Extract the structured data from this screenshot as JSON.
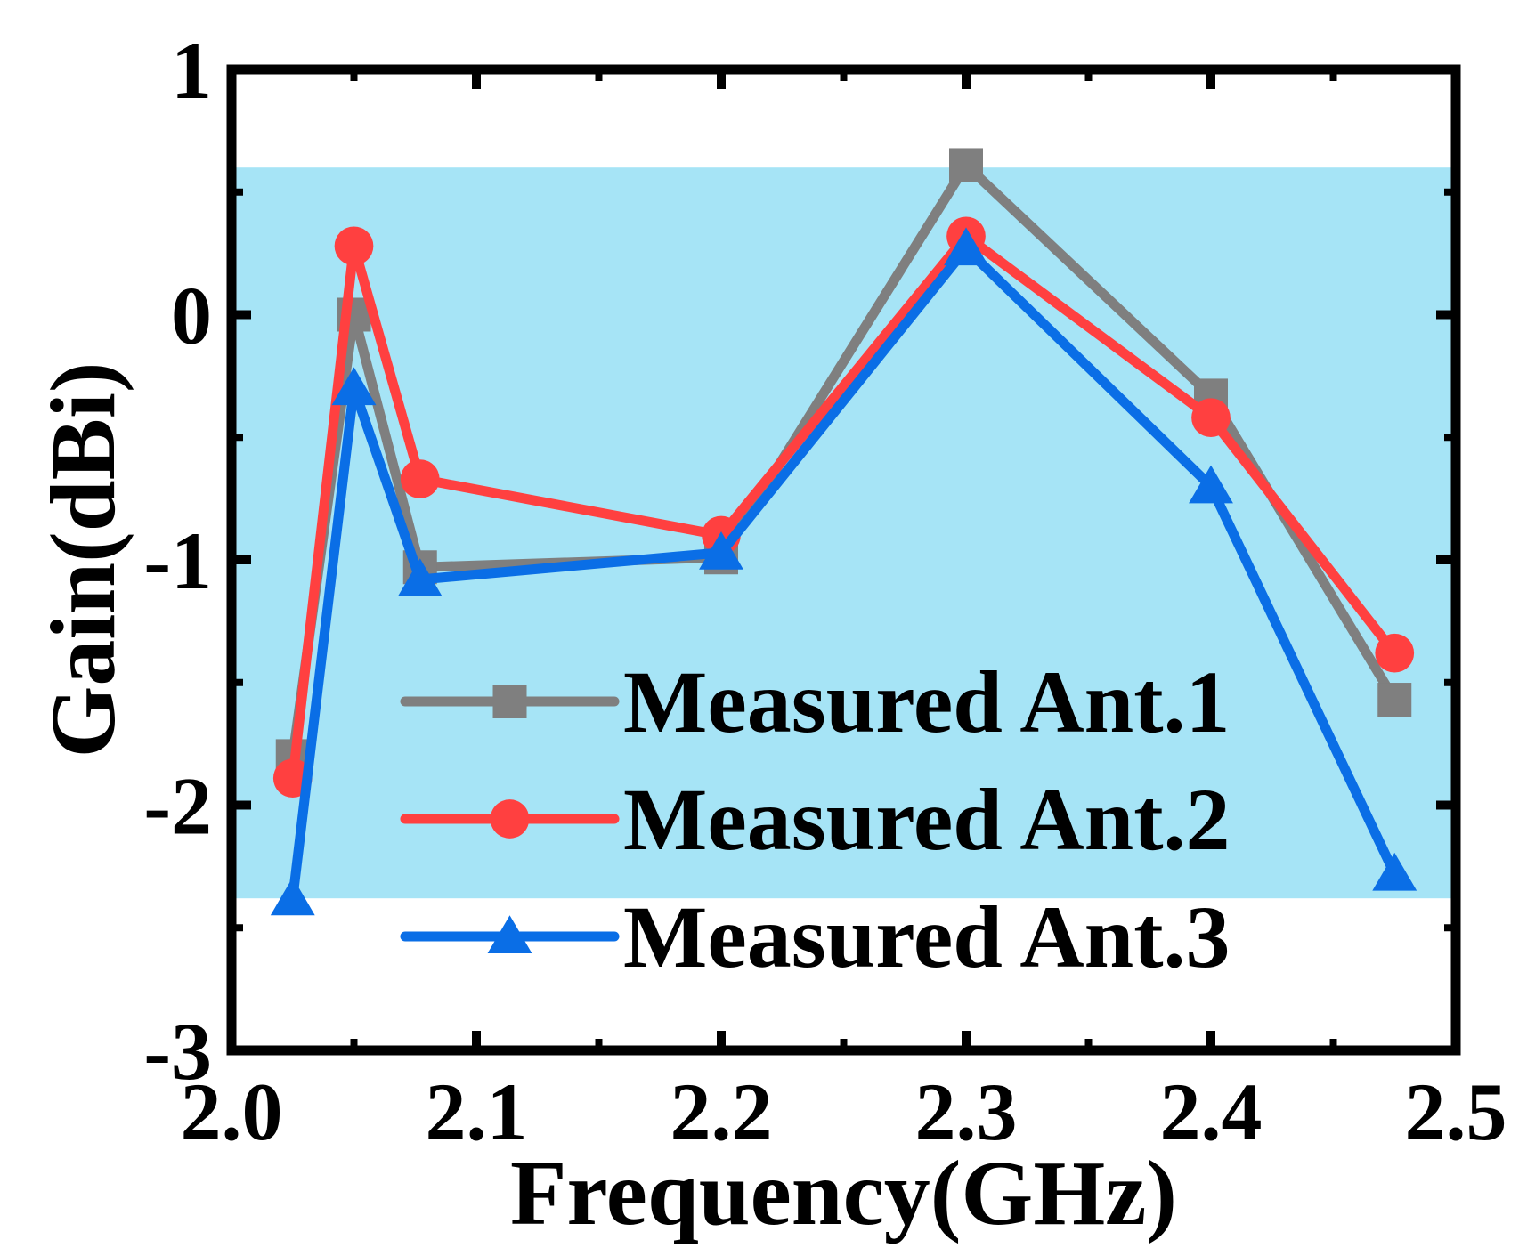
{
  "chart_data": {
    "type": "line",
    "title": "",
    "xlabel": "Frequency(GHz)",
    "ylabel": "Gain(dBi)",
    "xlim": [
      2.0,
      2.5
    ],
    "ylim": [
      -3,
      1
    ],
    "x_ticks": [
      {
        "value": 2.0,
        "label": "2.0"
      },
      {
        "value": 2.1,
        "label": "2.1"
      },
      {
        "value": 2.2,
        "label": "2.2"
      },
      {
        "value": 2.3,
        "label": "2.3"
      },
      {
        "value": 2.4,
        "label": "2.4"
      },
      {
        "value": 2.5,
        "label": "2.5"
      }
    ],
    "y_ticks": [
      {
        "value": 1,
        "label": "1"
      },
      {
        "value": 0,
        "label": "0"
      },
      {
        "value": -1,
        "label": "-1"
      },
      {
        "value": -2,
        "label": "-2"
      },
      {
        "value": -3,
        "label": "-3"
      }
    ],
    "shaded_band": {
      "y_range": [
        -2.38,
        0.6
      ],
      "color": "#A6E4F6"
    },
    "legend_position": "lower-right",
    "series": [
      {
        "name": "Measured Ant.1",
        "color": "#7F7F7F",
        "marker": "square",
        "x": [
          2.025,
          2.05,
          2.077,
          2.2,
          2.3,
          2.4,
          2.475
        ],
        "y": [
          -1.8,
          0.0,
          -1.03,
          -0.99,
          0.61,
          -0.33,
          -1.57
        ]
      },
      {
        "name": "Measured Ant.2",
        "color": "#FF4040",
        "marker": "circle",
        "x": [
          2.025,
          2.05,
          2.077,
          2.2,
          2.3,
          2.4,
          2.475
        ],
        "y": [
          -1.89,
          0.28,
          -0.67,
          -0.9,
          0.32,
          -0.42,
          -1.38
        ]
      },
      {
        "name": "Measured Ant.3",
        "color": "#0A6EE6",
        "marker": "triangle",
        "x": [
          2.025,
          2.05,
          2.077,
          2.2,
          2.3,
          2.4,
          2.475
        ],
        "y": [
          -2.38,
          -0.3,
          -1.08,
          -0.97,
          0.27,
          -0.7,
          -2.28
        ]
      }
    ]
  }
}
